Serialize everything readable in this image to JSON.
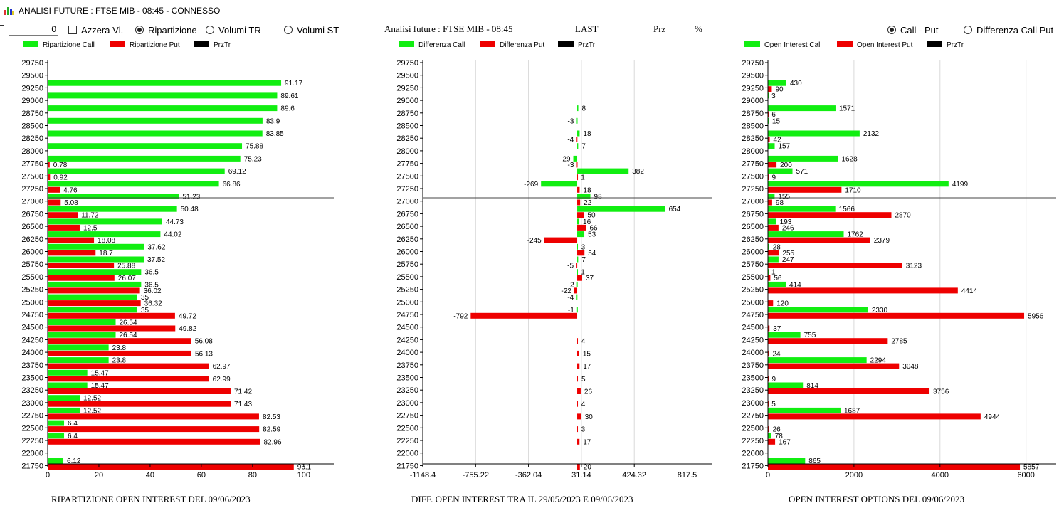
{
  "window": {
    "title": "ANALISI FUTURE : FTSE MIB - 08:45 - CONNESSO"
  },
  "controls": {
    "number_value": "0",
    "azzera_label": "Azzera Vl.",
    "ripartizione_label": "Ripartizione",
    "volumi_tr_label": "Volumi TR",
    "volumi_st_label": "Volumi ST",
    "call_put_label": "Call - Put",
    "diff_call_put_label": "Differenza Call Put"
  },
  "header": {
    "title": "Analisi future : FTSE MIB - 08:45",
    "last": "LAST",
    "prz": "Prz",
    "pct": "%"
  },
  "colors": {
    "call": "#11ee11",
    "put": "#ee0000",
    "prztr": "#000000"
  },
  "chart_data": [
    {
      "type": "bar",
      "orientation": "horizontal",
      "title": "RIPARTIZIONE OPEN INTEREST DEL 09/06/2023",
      "legend": [
        "Ripartizione Call",
        "Ripartizione Put",
        "PrzTr"
      ],
      "categories": [
        29750,
        29500,
        29250,
        29000,
        28750,
        28500,
        28250,
        28000,
        27750,
        27500,
        27250,
        27000,
        26750,
        26500,
        26250,
        26000,
        25750,
        25500,
        25250,
        25000,
        24750,
        24500,
        24250,
        24000,
        23750,
        23500,
        23250,
        23000,
        22750,
        22500,
        22250,
        22000,
        21750
      ],
      "series": [
        {
          "name": "Ripartizione Call",
          "values": [
            null,
            91.17,
            89.61,
            89.6,
            83.9,
            83.85,
            75.88,
            75.23,
            69.12,
            66.86,
            51.23,
            50.48,
            44.73,
            44.02,
            37.62,
            37.52,
            36.5,
            36.5,
            35,
            35,
            26.54,
            26.54,
            23.8,
            23.8,
            15.47,
            15.47,
            12.52,
            12.52,
            6.4,
            6.4,
            null,
            6.12,
            null
          ]
        },
        {
          "name": "Ripartizione Put",
          "values": [
            null,
            null,
            null,
            null,
            null,
            null,
            null,
            0.78,
            0.92,
            4.76,
            5.08,
            11.72,
            12.5,
            18.08,
            18.7,
            25.88,
            26.07,
            36.02,
            36.32,
            49.72,
            49.82,
            56.08,
            56.13,
            62.97,
            62.99,
            71.42,
            71.43,
            82.53,
            82.59,
            82.96,
            null,
            96.1,
            null
          ]
        }
      ],
      "prztr_level": 27250,
      "xlim": [
        0,
        112
      ],
      "xticks": [
        "0",
        "20",
        "40",
        "60",
        "80",
        "100"
      ],
      "xtick_values": [
        0,
        20,
        40,
        60,
        80,
        100
      ],
      "grid": false,
      "legend_position": "top"
    },
    {
      "type": "bar",
      "orientation": "horizontal",
      "title": "DIFF. OPEN INTEREST TRA IL 29/05/2023 E 09/06/2023",
      "legend": [
        "Differenza Call",
        "Differenza Put",
        "PrzTr"
      ],
      "categories": [
        29750,
        29500,
        29250,
        29000,
        28750,
        28500,
        28250,
        28000,
        27750,
        27500,
        27250,
        27000,
        26750,
        26500,
        26250,
        26000,
        25750,
        25500,
        25250,
        25000,
        24750,
        24500,
        24250,
        24000,
        23750,
        23500,
        23250,
        23000,
        22750,
        22500,
        22250,
        22000,
        21750
      ],
      "series": [
        {
          "name": "Differenza Call",
          "values": [
            null,
            null,
            null,
            8,
            -3,
            18,
            7,
            -29,
            382,
            -269,
            98,
            654,
            16,
            53,
            3,
            7,
            1,
            -2,
            -4,
            -1,
            null,
            null,
            null,
            null,
            null,
            null,
            null,
            null,
            null,
            null,
            null,
            null,
            null
          ]
        },
        {
          "name": "Differenza Put",
          "values": [
            null,
            null,
            null,
            null,
            null,
            -4,
            null,
            -3,
            1,
            18,
            22,
            50,
            66,
            -245,
            54,
            -5,
            37,
            -22,
            null,
            -792,
            null,
            4,
            15,
            17,
            5,
            26,
            4,
            30,
            3,
            17,
            null,
            20,
            null
          ]
        }
      ],
      "prztr_level": 27250,
      "xlim": [
        -1148.4,
        1000
      ],
      "xticks": [
        "-1148.4",
        "-755.22",
        "-362.04",
        "31.14",
        "424.32",
        "817.5"
      ],
      "xtick_values": [
        -1148.4,
        -755.22,
        -362.04,
        31.14,
        424.32,
        817.5
      ],
      "grid": true,
      "legend_position": "top"
    },
    {
      "type": "bar",
      "orientation": "horizontal",
      "title": "OPEN INTEREST OPTIONS DEL 09/06/2023",
      "legend": [
        "Open Interest Call",
        "Open Interest Put",
        "PrzTr"
      ],
      "categories": [
        29750,
        29500,
        29250,
        29000,
        28750,
        28500,
        28250,
        28000,
        27750,
        27500,
        27250,
        27000,
        26750,
        26500,
        26250,
        26000,
        25750,
        25500,
        25250,
        25000,
        24750,
        24500,
        24250,
        24000,
        23750,
        23500,
        23250,
        23000,
        22750,
        22500,
        22250,
        22000,
        21750
      ],
      "series": [
        {
          "name": "Open Interest Call",
          "values": [
            null,
            430,
            3,
            1571,
            15,
            2132,
            157,
            1628,
            571,
            4199,
            155,
            1566,
            193,
            1762,
            28,
            247,
            1,
            414,
            null,
            2330,
            null,
            755,
            null,
            2294,
            null,
            814,
            null,
            1687,
            null,
            78,
            null,
            865,
            null
          ]
        },
        {
          "name": "Open Interest Put",
          "values": [
            null,
            90,
            null,
            6,
            null,
            42,
            null,
            200,
            9,
            1710,
            98,
            2870,
            246,
            2379,
            255,
            3123,
            56,
            4414,
            120,
            5956,
            37,
            2785,
            24,
            3048,
            9,
            3756,
            5,
            4944,
            26,
            167,
            null,
            5857,
            null
          ]
        }
      ],
      "prztr_level": 27250,
      "xlim": [
        0,
        6700
      ],
      "xticks": [
        "0",
        "2000",
        "4000",
        "6000"
      ],
      "xtick_values": [
        0,
        2000,
        4000,
        6000
      ],
      "grid": true,
      "legend_position": "top"
    }
  ]
}
